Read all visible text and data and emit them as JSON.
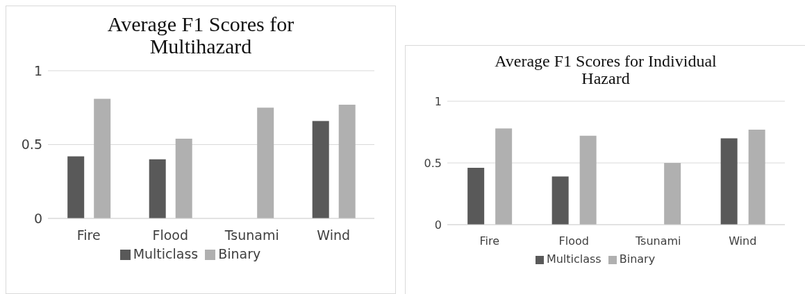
{
  "chart_data": [
    {
      "type": "bar",
      "title": "Average F1 Scores for Multihazard",
      "categories": [
        "Fire",
        "Flood",
        "Tsunami",
        "Wind"
      ],
      "series": [
        {
          "name": "Multiclass",
          "color": "#595959",
          "values": [
            0.42,
            0.4,
            0,
            0.66
          ]
        },
        {
          "name": "Binary",
          "color": "#b0b0b0",
          "values": [
            0.81,
            0.54,
            0.75,
            0.77
          ]
        }
      ],
      "ylim": [
        0,
        1
      ],
      "yticks": [
        0,
        0.5,
        1
      ],
      "grid": "y",
      "legend": "bottom"
    },
    {
      "type": "bar",
      "title": "Average F1 Scores for Individual Hazard",
      "categories": [
        "Fire",
        "Flood",
        "Tsunami",
        "Wind"
      ],
      "series": [
        {
          "name": "Multiclass",
          "color": "#595959",
          "values": [
            0.46,
            0.39,
            0,
            0.7
          ]
        },
        {
          "name": "Binary",
          "color": "#b0b0b0",
          "values": [
            0.78,
            0.72,
            0.5,
            0.77
          ]
        }
      ],
      "ylim": [
        0,
        1
      ],
      "yticks": [
        0,
        0.5,
        1
      ],
      "grid": "y",
      "legend": "bottom"
    }
  ]
}
